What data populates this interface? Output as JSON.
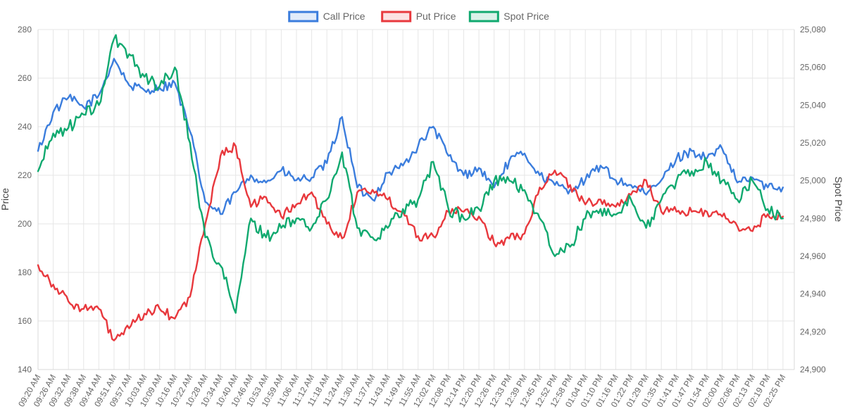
{
  "chart_data": {
    "type": "line",
    "title": "",
    "xlabel": "",
    "ylabel": "Price",
    "y2label": "Spot Price",
    "ylim": [
      140,
      280
    ],
    "y2lim": [
      24900,
      25080
    ],
    "yticks": [
      "140",
      "160",
      "180",
      "200",
      "220",
      "240",
      "260",
      "280"
    ],
    "y2ticks": [
      "24,900",
      "24,920",
      "24,940",
      "24,960",
      "24,980",
      "25,000",
      "25,020",
      "25,040",
      "25,060",
      "25,080"
    ],
    "grid": true,
    "legend_position": "top",
    "x": [
      "09:20 AM",
      "09:26 AM",
      "09:32 AM",
      "09:38 AM",
      "09:44 AM",
      "09:51 AM",
      "09:57 AM",
      "10:03 AM",
      "10:09 AM",
      "10:16 AM",
      "10:22 AM",
      "10:28 AM",
      "10:34 AM",
      "10:40 AM",
      "10:46 AM",
      "10:53 AM",
      "10:59 AM",
      "11:06 AM",
      "11:12 AM",
      "11:18 AM",
      "11:24 AM",
      "11:30 AM",
      "11:37 AM",
      "11:43 AM",
      "11:49 AM",
      "11:55 AM",
      "12:02 PM",
      "12:08 PM",
      "12:14 PM",
      "12:20 PM",
      "12:26 PM",
      "12:33 PM",
      "12:39 PM",
      "12:45 PM",
      "12:52 PM",
      "12:58 PM",
      "01:04 PM",
      "01:10 PM",
      "01:16 PM",
      "01:22 PM",
      "01:29 PM",
      "01:35 PM",
      "01:41 PM",
      "01:47 PM",
      "01:54 PM",
      "02:00 PM",
      "02:06 PM",
      "02:13 PM",
      "02:19 PM",
      "02:25 PM"
    ],
    "x_end_fraction": 0.985,
    "series": [
      {
        "name": "Call Price",
        "color": "#3b7ddd",
        "fill": "rgba(59,125,221,0.15)",
        "axis": "left",
        "values": [
          230,
          246,
          252,
          248,
          253,
          268,
          257,
          255,
          256,
          258,
          238,
          209,
          204,
          213,
          220,
          217,
          222,
          218,
          219,
          225,
          244,
          215,
          210,
          221,
          224,
          232,
          240,
          228,
          220,
          223,
          215,
          226,
          229,
          220,
          216,
          214,
          218,
          224,
          218,
          216,
          212,
          218,
          227,
          230,
          227,
          231,
          217,
          219,
          215,
          215
        ]
      },
      {
        "name": "Put Price",
        "color": "#e8383d",
        "fill": "rgba(232,56,61,0.15)",
        "axis": "left",
        "values": [
          183,
          175,
          168,
          165,
          165,
          152,
          157,
          163,
          165,
          161,
          170,
          200,
          228,
          232,
          207,
          211,
          203,
          208,
          213,
          200,
          194,
          213,
          214,
          210,
          205,
          195,
          195,
          205,
          205,
          203,
          192,
          194,
          196,
          215,
          222,
          216,
          208,
          210,
          207,
          212,
          218,
          205,
          205,
          205,
          205,
          203,
          199,
          197,
          204,
          203
        ]
      },
      {
        "name": "Spot Price",
        "color": "#10a96f",
        "fill": "rgba(16,169,111,0.15)",
        "axis": "right",
        "values": [
          25005,
          25025,
          25028,
          25035,
          25040,
          25075,
          25067,
          25055,
          25050,
          25060,
          25020,
          24970,
          24955,
          24930,
          24980,
          24970,
          24975,
          24980,
          24975,
          24990,
          25015,
          24975,
          24970,
          24975,
          24985,
          24990,
          25010,
          24985,
          24980,
          24985,
          25000,
          25000,
          24995,
          24980,
          24960,
          24965,
          24980,
          24985,
          24982,
          24990,
          24975,
          24990,
          25000,
          25005,
          25010,
          25000,
          24990,
          25000,
          24985,
          24980
        ]
      }
    ]
  }
}
